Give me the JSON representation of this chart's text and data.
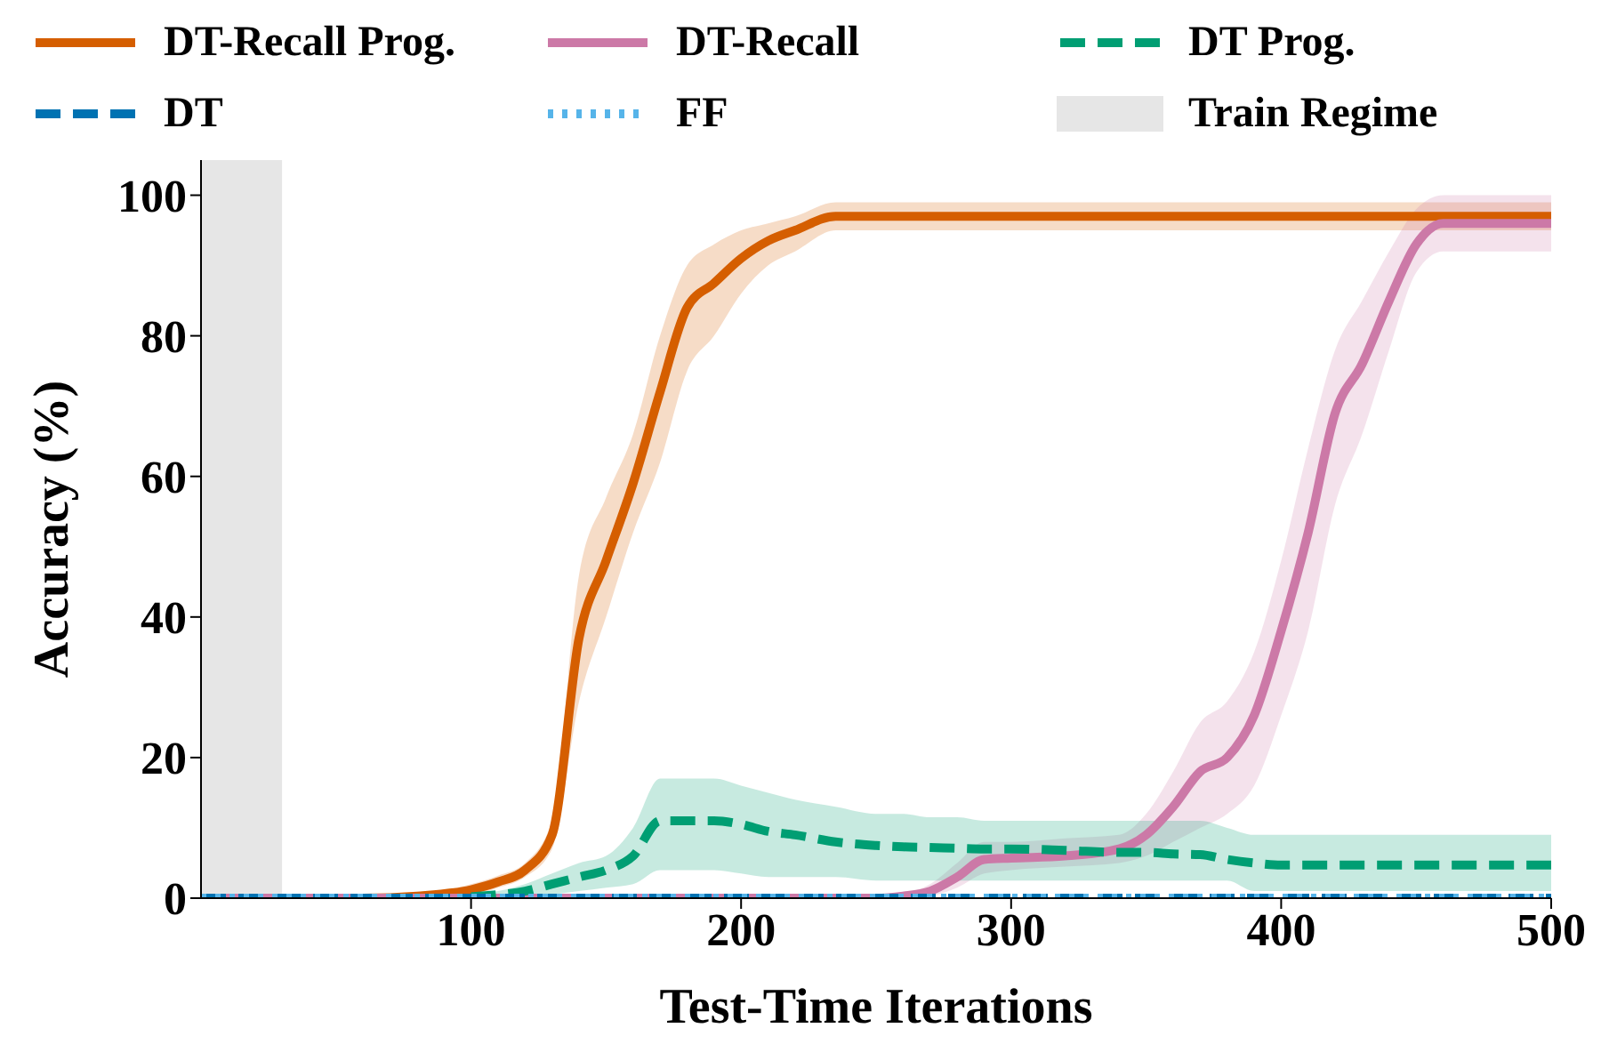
{
  "chart_data": {
    "type": "line",
    "xlabel": "Test-Time Iterations",
    "ylabel": "Accuracy (%)",
    "x": [
      0,
      60,
      80,
      100,
      110,
      120,
      130,
      140,
      150,
      160,
      170,
      180,
      190,
      200,
      210,
      220,
      235,
      250,
      260,
      270,
      280,
      290,
      300,
      320,
      340,
      350,
      360,
      370,
      380,
      390,
      400,
      410,
      420,
      430,
      440,
      450,
      460,
      480,
      500
    ],
    "xlim": [
      0,
      500
    ],
    "xticks": [
      100,
      200,
      300,
      400,
      500
    ],
    "ylim": [
      0,
      105
    ],
    "yticks": [
      0,
      20,
      40,
      60,
      80,
      100
    ],
    "grid": false,
    "legend": "top",
    "marker": "none",
    "bands": [
      {
        "axis": "x",
        "from": 0,
        "to": 30,
        "label": "Train Regime",
        "color": "#e6e6e6"
      }
    ],
    "series": [
      {
        "name": "DT-Recall Prog.",
        "color": "#d55e00",
        "line_style": "solid",
        "values": [
          0,
          0,
          0.3,
          1.2,
          2.3,
          4,
          9,
          37,
          48,
          59,
          72,
          84,
          87.5,
          91,
          93.5,
          95,
          97,
          97,
          97,
          97,
          97,
          97,
          97,
          97,
          97,
          97,
          97,
          97,
          97,
          97,
          97,
          97,
          97,
          97,
          97,
          97,
          97,
          97,
          97
        ],
        "lower": [
          0,
          0,
          0,
          0.5,
          1.5,
          3,
          7,
          28,
          40,
          52,
          62,
          75,
          80,
          86,
          90,
          92,
          95,
          95,
          95,
          95,
          95,
          95,
          95,
          95,
          95,
          95,
          95,
          95,
          95,
          95,
          95,
          95,
          95,
          95,
          95,
          95,
          95,
          95,
          95
        ],
        "upper": [
          0,
          0,
          0.6,
          2,
          3.2,
          5,
          11,
          46,
          57,
          66,
          80,
          90,
          93,
          95,
          96,
          97,
          99,
          99,
          99,
          99,
          99,
          99,
          99,
          99,
          99,
          99,
          99,
          99,
          99,
          99,
          99,
          99,
          99,
          99,
          99,
          99,
          99,
          99,
          99
        ]
      },
      {
        "name": "DT-Recall",
        "color": "#cc79a7",
        "line_style": "solid",
        "values": [
          0,
          0,
          0,
          0,
          0,
          0,
          0,
          0,
          0,
          0,
          0,
          0,
          0,
          0,
          0,
          0,
          0,
          0,
          0.3,
          1,
          3,
          5.5,
          5.7,
          6,
          7,
          9,
          13,
          18,
          20,
          26,
          38,
          52,
          69,
          76,
          85,
          93,
          96,
          96,
          96
        ],
        "lower": [
          0,
          0,
          0,
          0,
          0,
          0,
          0,
          0,
          0,
          0,
          0,
          0,
          0,
          0,
          0,
          0,
          0,
          0,
          0,
          0.3,
          1.5,
          3.5,
          4,
          4.5,
          5,
          6,
          8,
          10,
          12,
          16,
          26,
          38,
          56,
          66,
          78,
          89,
          92,
          92,
          92
        ],
        "upper": [
          0,
          0,
          0,
          0,
          0,
          0,
          0,
          0,
          0,
          0,
          0,
          0,
          0,
          0,
          0,
          0,
          0,
          0,
          0.6,
          2,
          5,
          8,
          8,
          8.5,
          9,
          12,
          18,
          25,
          28,
          35,
          48,
          64,
          78,
          85,
          92,
          98,
          100,
          100,
          100
        ]
      },
      {
        "name": "DT Prog.",
        "color": "#009e73",
        "line_style": "dashed",
        "values": [
          null,
          null,
          null,
          0.2,
          0.5,
          1,
          2,
          3,
          4,
          6,
          11,
          11,
          11,
          10.5,
          9.5,
          9,
          8,
          7.5,
          7.3,
          7.2,
          7.1,
          7,
          7,
          6.8,
          6.5,
          6.5,
          6.3,
          6.2,
          5.5,
          5,
          4.7,
          4.7,
          4.7,
          4.7,
          4.7,
          4.7,
          4.7,
          4.7,
          4.7
        ],
        "lower": [
          0,
          0,
          0,
          0,
          0,
          0,
          0.5,
          1,
          1.5,
          2,
          4,
          4,
          4,
          3.5,
          3,
          3,
          3,
          2.5,
          2.5,
          2.5,
          2.5,
          2.5,
          2.5,
          2.5,
          2.5,
          2.5,
          2.5,
          2.5,
          2.5,
          1,
          1,
          1,
          1,
          1,
          1,
          1,
          1,
          1,
          1
        ],
        "upper": [
          0,
          0,
          0,
          0.5,
          1,
          2,
          3.5,
          5,
          6,
          10,
          17,
          17,
          17,
          16,
          15,
          14,
          13,
          12,
          12,
          11.5,
          11.5,
          11,
          11,
          11,
          11,
          11,
          11,
          11,
          10,
          9,
          9,
          9,
          9,
          9,
          9,
          9,
          9,
          9,
          9
        ]
      },
      {
        "name": "DT",
        "color": "#0072b2",
        "line_style": "dashed",
        "values": [
          0,
          0,
          0,
          0,
          0,
          0,
          0,
          0,
          0,
          0,
          0,
          0,
          0,
          0,
          0,
          0,
          0,
          0,
          0,
          0,
          0,
          0,
          0,
          0,
          0,
          0,
          0,
          0,
          0,
          0,
          0,
          0,
          0,
          0,
          0,
          0,
          0,
          0,
          0
        ]
      },
      {
        "name": "FF",
        "color": "#56b4e9",
        "line_style": "dotted",
        "values": [
          0,
          0,
          0,
          0,
          0,
          0,
          0,
          0,
          0,
          0,
          0,
          0,
          0,
          0,
          0,
          0,
          0,
          0,
          0,
          0,
          0,
          0,
          0,
          0,
          0,
          0,
          0,
          0,
          0,
          0,
          0,
          0,
          0,
          0,
          0,
          0,
          0,
          0,
          0
        ]
      }
    ]
  }
}
